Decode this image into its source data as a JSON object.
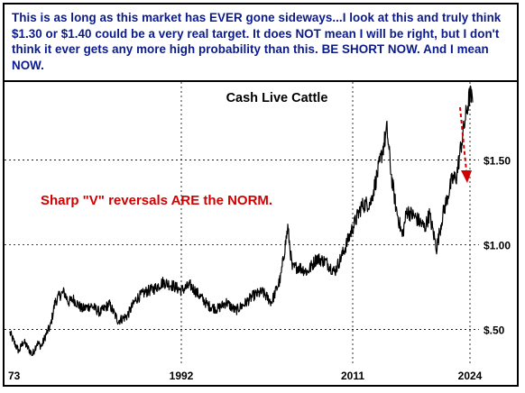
{
  "commentary": "This is as long as this market has EVER gone sideways...I look at this and truly think $1.30 or $1.40 could be a very real target. It does NOT mean I will be right, but I don't think it ever gets any more high probability than this. BE SHORT NOW. And I mean NOW.",
  "colors": {
    "commentary": "#0a1a8c",
    "annotation": "#d10000",
    "line": "#000000",
    "grid": "#000000",
    "arrow": "#d10000"
  },
  "chart_data": {
    "type": "line",
    "title": "Cash Live Cattle",
    "annotation": "Sharp \"V\" reversals ARE the NORM.",
    "x_ticks": [
      "73",
      "1992",
      "2011",
      "2024"
    ],
    "y_ticks": [
      "$.50",
      "$1.00",
      "$1.50"
    ],
    "y_tick_values": [
      0.5,
      1.0,
      1.5
    ],
    "xlim": [
      1973,
      2025
    ],
    "ylim": [
      0.3,
      1.95
    ],
    "grid": "horizontal",
    "y_axis_side": "right",
    "series": [
      {
        "x": [
          1973,
          1973.5,
          1974,
          1974.5,
          1975,
          1975.5,
          1976,
          1976.5,
          1977,
          1977.5,
          1978,
          1978.5,
          1979,
          1979.5,
          1980,
          1981,
          1982,
          1983,
          1984,
          1985,
          1986,
          1987,
          1988,
          1989,
          1990,
          1991,
          1992,
          1993,
          1994,
          1995,
          1996,
          1997,
          1998,
          1999,
          2000,
          2001,
          2002,
          2003,
          2003.8,
          2004.3,
          2005,
          2006,
          2007,
          2008,
          2009,
          2010,
          2011,
          2012,
          2013,
          2014,
          2014.8,
          2015.3,
          2015.8,
          2016.5,
          2017,
          2018,
          2019,
          2019.5,
          2020.3,
          2021,
          2022,
          2022.5,
          2023,
          2023.5,
          2024,
          2024.3
        ],
        "y": [
          0.48,
          0.42,
          0.37,
          0.43,
          0.39,
          0.35,
          0.42,
          0.4,
          0.47,
          0.52,
          0.66,
          0.7,
          0.72,
          0.66,
          0.68,
          0.62,
          0.64,
          0.6,
          0.65,
          0.55,
          0.58,
          0.68,
          0.72,
          0.74,
          0.78,
          0.76,
          0.73,
          0.76,
          0.7,
          0.64,
          0.62,
          0.66,
          0.61,
          0.65,
          0.7,
          0.72,
          0.66,
          0.8,
          1.1,
          0.86,
          0.87,
          0.84,
          0.92,
          0.9,
          0.84,
          0.96,
          1.1,
          1.23,
          1.25,
          1.48,
          1.68,
          1.4,
          1.22,
          1.05,
          1.2,
          1.16,
          1.1,
          1.18,
          0.98,
          1.18,
          1.38,
          1.4,
          1.58,
          1.75,
          1.89,
          1.84
        ]
      }
    ]
  }
}
